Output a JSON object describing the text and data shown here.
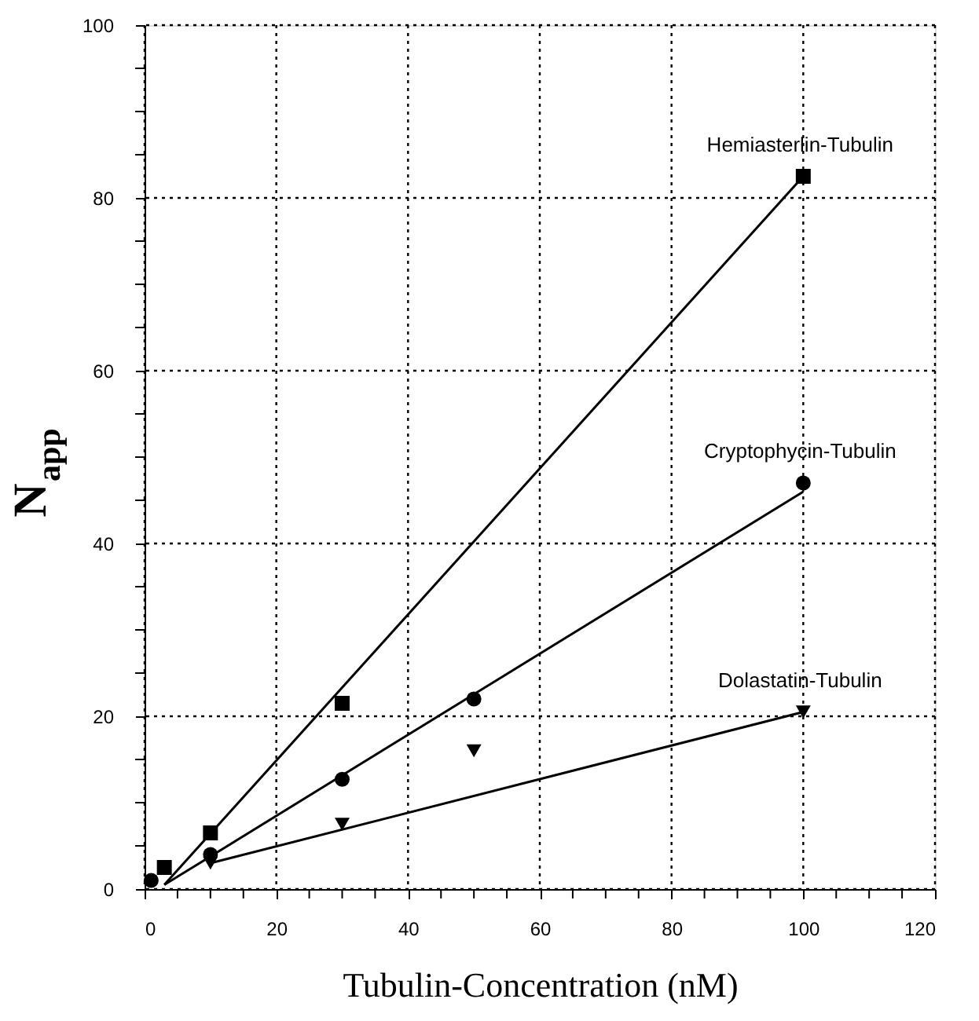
{
  "chart_data": {
    "type": "scatter",
    "xlabel": "Tubulin-Concentration   (nM)",
    "ylabel": "N$_{app}$",
    "xlim": [
      0,
      120
    ],
    "ylim": [
      0,
      100
    ],
    "xticks": [
      0,
      {
        "value": 5,
        "label": null
      },
      {
        "value": 10,
        "label": null
      },
      {
        "value": 15,
        "label": null
      },
      20,
      {
        "value": 25,
        "label": null
      },
      {
        "value": 30,
        "label": null
      },
      {
        "value": 35,
        "label": null
      },
      40,
      {
        "value": 45,
        "label": null
      },
      {
        "value": 50,
        "label": null
      },
      {
        "value": 55,
        "label": null
      },
      60,
      {
        "value": 65,
        "label": null
      },
      {
        "value": 70,
        "label": null
      },
      {
        "value": 75,
        "label": null
      },
      80,
      {
        "value": 85,
        "label": null
      },
      {
        "value": 90,
        "label": null
      },
      {
        "value": 95,
        "label": null
      },
      100,
      {
        "value": 105,
        "label": null
      },
      {
        "value": 110,
        "label": null
      },
      {
        "value": 115,
        "label": null
      },
      120
    ],
    "yticks": [
      0,
      {
        "value": 5,
        "label": null
      },
      {
        "value": 10,
        "label": null
      },
      {
        "value": 15,
        "label": null
      },
      20,
      {
        "value": 25,
        "label": null
      },
      {
        "value": 30,
        "label": null
      },
      {
        "value": 35,
        "label": null
      },
      40,
      {
        "value": 45,
        "label": null
      },
      {
        "value": 50,
        "label": null
      },
      {
        "value": 55,
        "label": null
      },
      60,
      {
        "value": 65,
        "label": null
      },
      {
        "value": 70,
        "label": null
      },
      {
        "value": 75,
        "label": null
      },
      80,
      {
        "value": 85,
        "label": null
      },
      {
        "value": 90,
        "label": null
      },
      {
        "value": 95,
        "label": null
      },
      100
    ],
    "grid": true,
    "legend": false,
    "series": [
      {
        "name": "Hemiasterlin-Tubulin",
        "color": "#000000",
        "marker": "square",
        "x": [
          3,
          10,
          30,
          100
        ],
        "values": [
          2.5,
          6.5,
          21.5,
          82.5
        ]
      },
      {
        "name": "Cryptophycin-Tubulin",
        "color": "#000000",
        "marker": "circle",
        "x": [
          1,
          10,
          30,
          50,
          100
        ],
        "values": [
          1,
          4,
          12.7,
          22,
          47
        ]
      },
      {
        "name": "Dolastatin-Tubulin",
        "color": "#000000",
        "marker": "triangle",
        "x": [
          10,
          30,
          50,
          100
        ],
        "values": [
          3,
          7.5,
          16,
          20.5
        ]
      },
      {
        "type": "line",
        "color": "#000000",
        "marker": "none",
        "line_style": "solid",
        "x": [
          3,
          100
        ],
        "values": [
          0.5,
          82.5
        ]
      },
      {
        "type": "line",
        "color": "#000000",
        "marker": "none",
        "line_style": "solid",
        "x": [
          3,
          100
        ],
        "values": [
          0.5,
          46
        ]
      },
      {
        "type": "line",
        "color": "#000000",
        "marker": "none",
        "line_style": "solid",
        "x": [
          10,
          100
        ],
        "values": [
          3,
          20.5
        ]
      }
    ]
  }
}
